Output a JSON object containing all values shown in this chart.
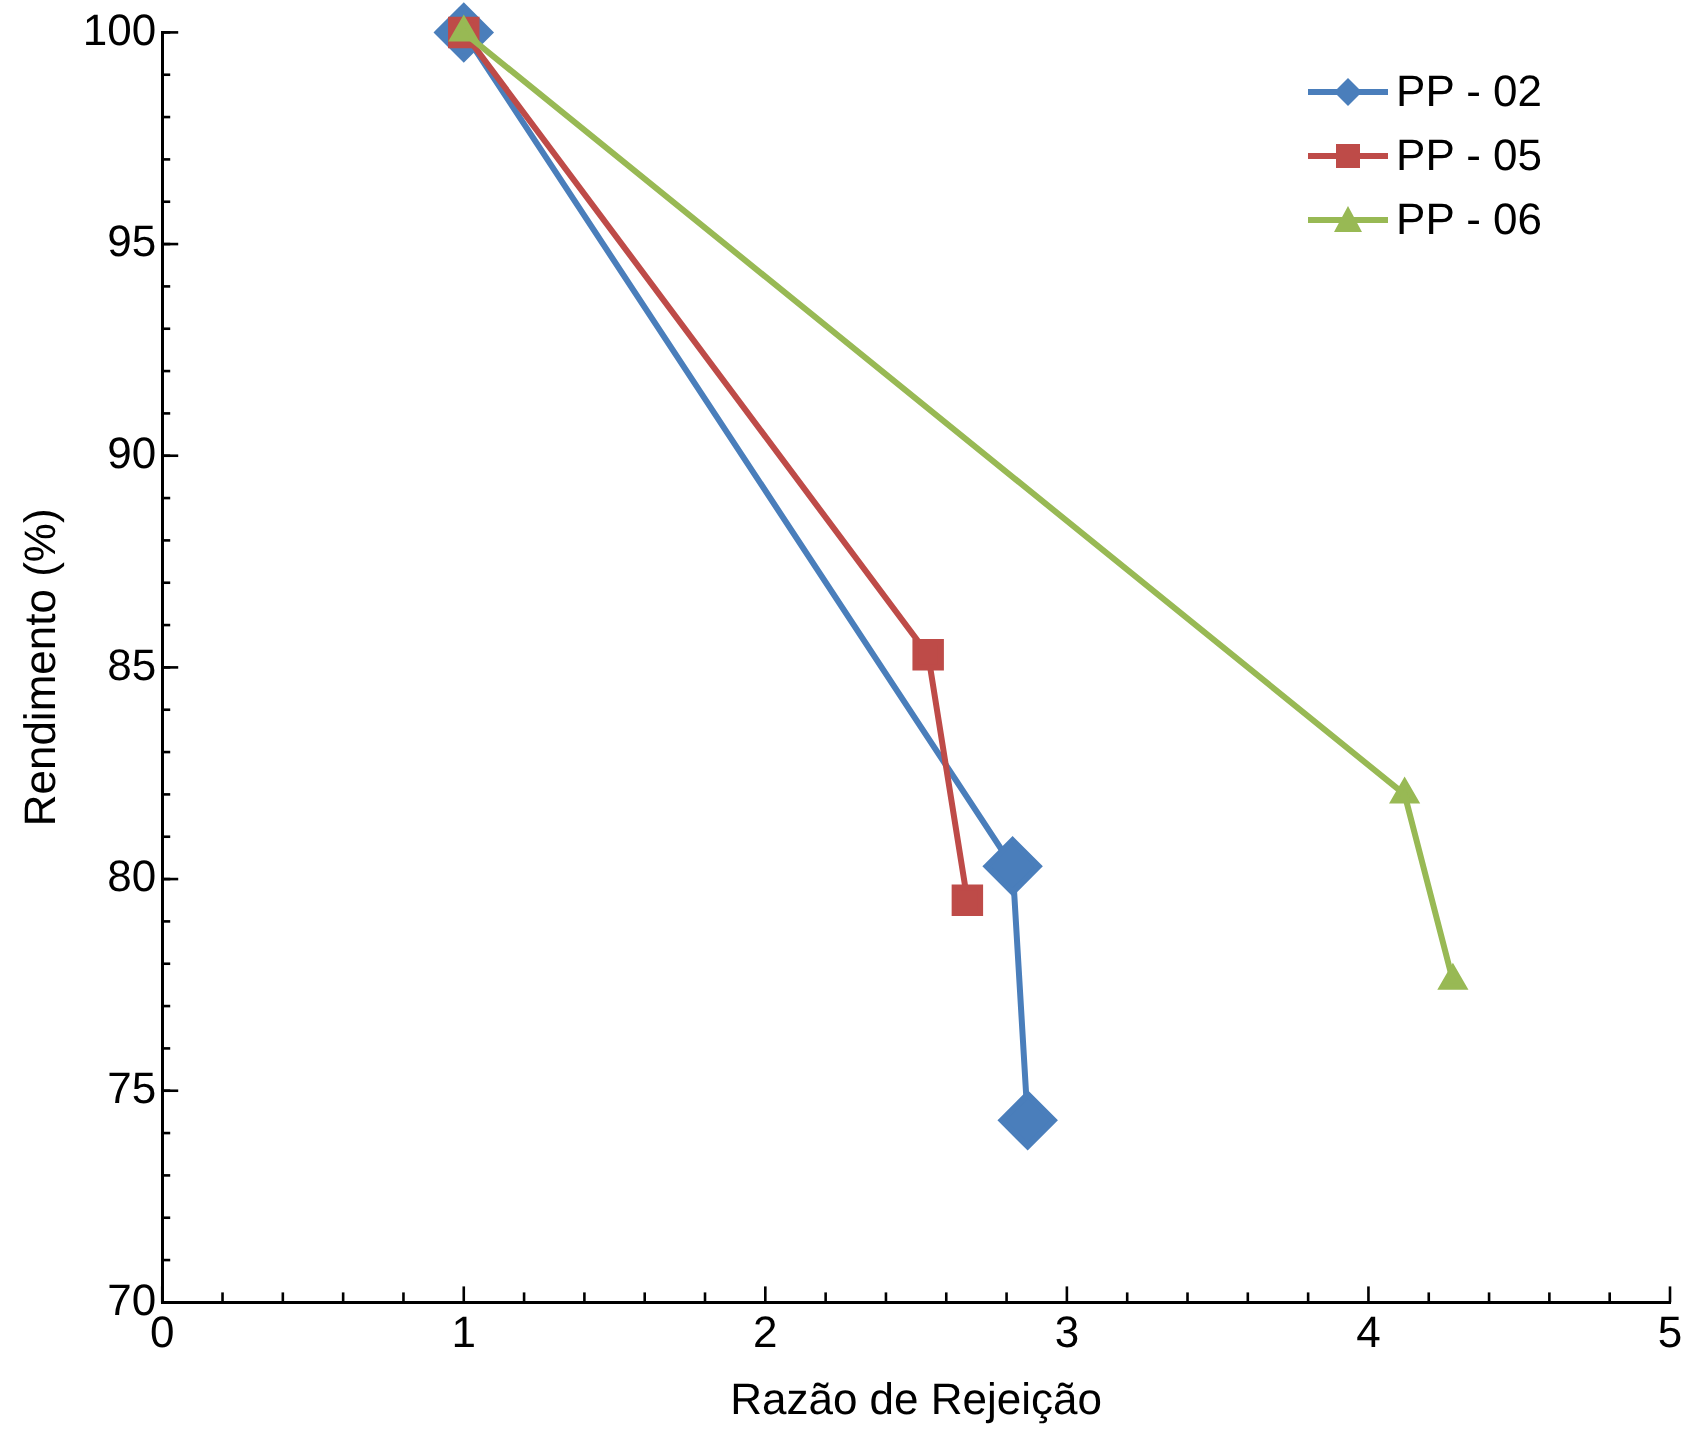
{
  "chart_data": {
    "type": "line",
    "xlabel": "Razão de Rejeição",
    "ylabel": "Rendimento (%)",
    "xlim": [
      0,
      5
    ],
    "ylim": [
      70,
      100
    ],
    "xticks": [
      0,
      {
        "value": 0.2,
        "label": null
      },
      {
        "value": 0.4,
        "label": null
      },
      {
        "value": 0.6,
        "label": null
      },
      {
        "value": 0.8,
        "label": null
      },
      1,
      {
        "value": 1.2,
        "label": null
      },
      {
        "value": 1.4,
        "label": null
      },
      {
        "value": 1.6,
        "label": null
      },
      {
        "value": 1.8,
        "label": null
      },
      2,
      {
        "value": 2.2,
        "label": null
      },
      {
        "value": 2.4,
        "label": null
      },
      {
        "value": 2.6,
        "label": null
      },
      {
        "value": 2.8,
        "label": null
      },
      3,
      {
        "value": 3.2,
        "label": null
      },
      {
        "value": 3.4,
        "label": null
      },
      {
        "value": 3.6,
        "label": null
      },
      {
        "value": 3.8,
        "label": null
      },
      4,
      {
        "value": 4.2,
        "label": null
      },
      {
        "value": 4.4,
        "label": null
      },
      {
        "value": 4.6,
        "label": null
      },
      {
        "value": 4.8,
        "label": null
      },
      5
    ],
    "yticks": [
      70,
      75,
      80,
      85,
      90,
      95,
      100
    ],
    "grid": false,
    "legend": "top right",
    "line_style": "solid",
    "series": [
      {
        "name": "PP - 02",
        "color": "#4a7ebb",
        "marker": "diamond",
        "x": [
          1,
          2.82,
          2.87
        ],
        "values": [
          100,
          80.3,
          74.3
        ]
      },
      {
        "name": "PP - 05",
        "color": "#be4b48",
        "marker": "square",
        "x": [
          1,
          2.54,
          2.67
        ],
        "values": [
          100,
          85.3,
          79.5
        ]
      },
      {
        "name": "PP - 06",
        "color": "#98b954",
        "marker": "triangle",
        "x": [
          1,
          4.12,
          4.28
        ],
        "values": [
          100,
          82.0,
          77.6
        ]
      }
    ]
  }
}
